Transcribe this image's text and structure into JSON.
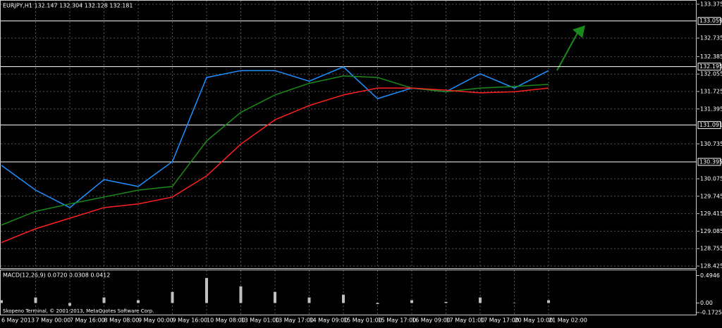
{
  "chart_data": {
    "type": "line",
    "title": "EURJPY,H1  132.147 132.304 132.128 132.181",
    "footer": "Skopeno Terminal, © 2001-2013, MetaQuotes Software Corp.",
    "categories": [
      "6 May 2013",
      "7 May 00:00",
      "7 May 16:00",
      "8 May 08:00",
      "9 May 00:00",
      "9 May 16:00",
      "10 May 08:00",
      "13 May 01:00",
      "13 May 17:00",
      "14 May 09:00",
      "15 May 01:00",
      "15 May 17:00",
      "16 May 09:00",
      "17 May 01:00",
      "17 May 17:00",
      "20 May 10:00",
      "21 May 02:00"
    ],
    "series": [
      {
        "color": "#1e90ff",
        "values": [
          130.33,
          129.86,
          129.53,
          130.06,
          129.93,
          130.4,
          131.99,
          132.12,
          132.12,
          131.92,
          132.19,
          131.59,
          131.79,
          131.72,
          132.06,
          131.79,
          132.12
        ]
      },
      {
        "color": "#1a8a1a",
        "values": [
          129.2,
          129.46,
          129.6,
          129.73,
          129.86,
          129.93,
          130.79,
          131.33,
          131.66,
          131.88,
          132.02,
          131.99,
          131.79,
          131.72,
          131.79,
          131.82,
          131.86
        ]
      },
      {
        "color": "#ff2020",
        "values": [
          128.87,
          129.13,
          129.33,
          129.53,
          129.6,
          129.73,
          130.13,
          130.73,
          131.19,
          131.46,
          131.66,
          131.79,
          131.79,
          131.75,
          131.7,
          131.72,
          131.79
        ]
      }
    ],
    "ylim": [
      128.425,
      133.375
    ],
    "yticks": [
      133.375,
      132.735,
      132.385,
      132.055,
      131.725,
      131.395,
      130.735,
      130.075,
      129.745,
      129.415,
      129.085,
      128.755,
      128.425
    ],
    "levels": [
      133.059,
      132.195,
      131.091,
      130.395
    ],
    "grid": true,
    "macd": {
      "title": "MACD(12,26,9) 0.0720 0.0308 0.0412",
      "color": "#c0c0c0",
      "values": [
        0.05,
        0.1,
        -0.05,
        0.1,
        0.05,
        0.2,
        0.45,
        0.3,
        0.2,
        0.1,
        0.15,
        -0.02,
        0.05,
        0.02,
        0.1,
        0.0,
        0.05
      ],
      "ylim": [
        -0.21,
        0.59
      ],
      "yticks": [
        0.4946,
        {
          "value": 0,
          "label": "0.00"
        },
        -0.1725
      ]
    }
  }
}
